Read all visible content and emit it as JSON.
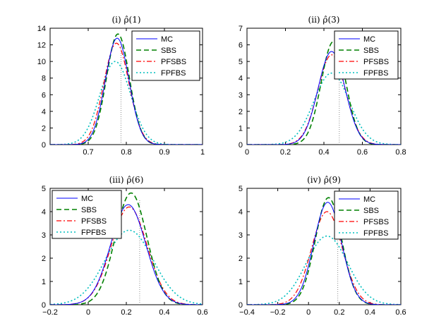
{
  "colors": {
    "MC": "#0000ff",
    "SBS": "#008000",
    "PFSBS": "#ff0000",
    "FPFBS": "#00bfbf",
    "ref": "#8c8c8c"
  },
  "chart_data": [
    {
      "type": "line",
      "title": "(i)  ρ̂(1)",
      "xlabel": "",
      "ylabel": "",
      "xlim": [
        0.6,
        1.0
      ],
      "ylim": [
        0,
        14
      ],
      "xticks": [
        0.7,
        0.8,
        0.9,
        1
      ],
      "xtick_labels": [
        "0.7",
        "0.8",
        "0.9",
        "1"
      ],
      "yticks": [
        0,
        2,
        4,
        6,
        8,
        10,
        12,
        14
      ],
      "ytick_labels": [
        "0",
        "2",
        "4",
        "6",
        "8",
        "10",
        "12",
        "14"
      ],
      "legend": "top-right",
      "reference_line": {
        "x": 0.786,
        "y": [
          0,
          12.5
        ]
      },
      "series": [
        {
          "name": "MC",
          "mean": 0.776,
          "sd": 0.031,
          "peak": 12.8
        },
        {
          "name": "SBS",
          "mean": 0.778,
          "sd": 0.03,
          "peak": 13.3
        },
        {
          "name": "PFSBS",
          "mean": 0.774,
          "sd": 0.033,
          "peak": 12.2
        },
        {
          "name": "FPFBS",
          "mean": 0.771,
          "sd": 0.04,
          "peak": 10.0
        }
      ]
    },
    {
      "type": "line",
      "title": "(ii)  ρ̂(3)",
      "xlabel": "",
      "ylabel": "",
      "xlim": [
        0,
        0.8
      ],
      "ylim": [
        0,
        7
      ],
      "xticks": [
        0,
        0.2,
        0.4,
        0.6,
        0.8
      ],
      "xtick_labels": [
        "0",
        "0.2",
        "0.4",
        "0.6",
        "0.8"
      ],
      "yticks": [
        0,
        1,
        2,
        3,
        4,
        5,
        6,
        7
      ],
      "ytick_labels": [
        "0",
        "1",
        "2",
        "3",
        "4",
        "5",
        "6",
        "7"
      ],
      "legend": "top-right",
      "reference_line": {
        "x": 0.48,
        "y": [
          0,
          6.5
        ]
      },
      "series": [
        {
          "name": "MC",
          "mean": 0.44,
          "sd": 0.07,
          "peak": 5.6
        },
        {
          "name": "SBS",
          "mean": 0.45,
          "sd": 0.064,
          "peak": 6.2
        },
        {
          "name": "PFSBS",
          "mean": 0.44,
          "sd": 0.072,
          "peak": 5.4
        },
        {
          "name": "FPFBS",
          "mean": 0.44,
          "sd": 0.092,
          "peak": 4.3
        }
      ]
    },
    {
      "type": "line",
      "title": "(iii)  ρ̂(6)",
      "xlabel": "",
      "ylabel": "",
      "xlim": [
        -0.2,
        0.6
      ],
      "ylim": [
        0,
        5
      ],
      "xticks": [
        -0.2,
        0,
        0.2,
        0.4,
        0.6
      ],
      "xtick_labels": [
        "−0.2",
        "0",
        "0.2",
        "0.4",
        "0.6"
      ],
      "yticks": [
        0,
        1,
        2,
        3,
        4,
        5
      ],
      "ytick_labels": [
        "0",
        "1",
        "2",
        "3",
        "4",
        "5"
      ],
      "legend": "top-left",
      "reference_line": {
        "x": 0.27,
        "y": [
          0,
          4.5
        ]
      },
      "series": [
        {
          "name": "MC",
          "mean": 0.21,
          "sd": 0.092,
          "peak": 4.3
        },
        {
          "name": "SBS",
          "mean": 0.225,
          "sd": 0.083,
          "peak": 4.8
        },
        {
          "name": "PFSBS",
          "mean": 0.215,
          "sd": 0.094,
          "peak": 4.2
        },
        {
          "name": "FPFBS",
          "mean": 0.215,
          "sd": 0.125,
          "peak": 3.2
        }
      ]
    },
    {
      "type": "line",
      "title": "(iv)  ρ̂(9)",
      "xlabel": "",
      "ylabel": "",
      "xlim": [
        -0.4,
        0.6
      ],
      "ylim": [
        0,
        5
      ],
      "xticks": [
        -0.4,
        -0.2,
        0,
        0.2,
        0.4,
        0.6
      ],
      "xtick_labels": [
        "−0.4",
        "−0.2",
        "0",
        "0.2",
        "0.4",
        "0.6"
      ],
      "yticks": [
        0,
        1,
        2,
        3,
        4,
        5
      ],
      "ytick_labels": [
        "0",
        "1",
        "2",
        "3",
        "4",
        "5"
      ],
      "legend": "top-right",
      "reference_line": {
        "x": 0.19,
        "y": [
          0,
          4.4
        ]
      },
      "series": [
        {
          "name": "MC",
          "mean": 0.125,
          "sd": 0.09,
          "peak": 4.4
        },
        {
          "name": "SBS",
          "mean": 0.13,
          "sd": 0.086,
          "peak": 4.6
        },
        {
          "name": "PFSBS",
          "mean": 0.12,
          "sd": 0.1,
          "peak": 4.0
        },
        {
          "name": "FPFBS",
          "mean": 0.12,
          "sd": 0.135,
          "peak": 2.95
        }
      ]
    }
  ]
}
